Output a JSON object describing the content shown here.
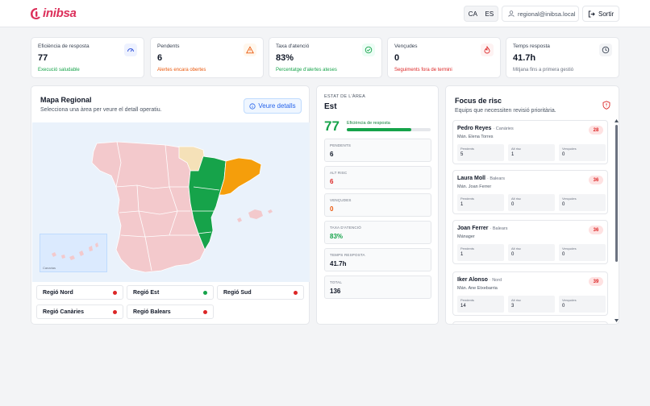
{
  "brand": {
    "name": "inibsa"
  },
  "header": {
    "lang_ca": "CA",
    "lang_es": "ES",
    "user_email": "regional@inibsa.local",
    "logout_label": "Sortir"
  },
  "colors": {
    "brand": "#dc2f5a",
    "accent": "#2563eb",
    "success": "#16a34a",
    "warning": "#ea580c",
    "danger": "#dc2626",
    "map_default": "#f3c9cc",
    "map_selected": "#16a34a",
    "map_orange": "#f59e0b",
    "map_beige": "#f5e1b8"
  },
  "kpis": [
    {
      "label": "Eficiència de resposta",
      "value": "77",
      "sub": "Execució saludable",
      "icon": "gauge-icon",
      "tone": "#16a34a"
    },
    {
      "label": "Pendents",
      "value": "6",
      "sub": "Alertes encara obertes",
      "icon": "warning-icon",
      "tone": "#ea580c"
    },
    {
      "label": "Taxa d'atenció",
      "value": "83%",
      "sub": "Percentatge d'alertes ateses",
      "icon": "check-circle-icon",
      "tone": "#16a34a"
    },
    {
      "label": "Vençudes",
      "value": "0",
      "sub": "Seguiments fora de termini",
      "icon": "flame-icon",
      "tone": "#dc2626"
    },
    {
      "label": "Temps resposta",
      "value": "41.7h",
      "sub": "Mitjana fins a primera gestió",
      "icon": "clock-icon",
      "tone": "#6b7280"
    }
  ],
  "map": {
    "title": "Mapa Regional",
    "subtitle": "Selecciona una àrea per veure el detall operatiu.",
    "details_label": "Veure detalls",
    "canarias_label": "Canarias",
    "regions": [
      {
        "label": "Regió Nord",
        "status": "#dc2626"
      },
      {
        "label": "Regió Est",
        "status": "#16a34a"
      },
      {
        "label": "Regió Sud",
        "status": "#dc2626"
      },
      {
        "label": "Regió Canàries",
        "status": "#dc2626"
      },
      {
        "label": "Regió Balears",
        "status": "#dc2626"
      }
    ]
  },
  "state": {
    "tag": "ESTAT DE L'ÀREA",
    "name": "Est",
    "efficiency": "77",
    "efficiency_label": "Eficiència de resposta",
    "efficiency_fraction": 0.77,
    "stats": [
      {
        "label": "PENDENTS",
        "value": "6",
        "color": "#111827"
      },
      {
        "label": "ALT RISC",
        "value": "6",
        "color": "#dc2626"
      },
      {
        "label": "VENÇUDES",
        "value": "0",
        "color": "#ea580c"
      },
      {
        "label": "TAXA D'ATENCIÓ",
        "value": "83%",
        "color": "#16a34a"
      },
      {
        "label": "TEMPS RESPOSTA",
        "value": "41.7h",
        "color": "#111827"
      },
      {
        "label": "TOTAL",
        "value": "136",
        "color": "#111827"
      }
    ]
  },
  "focus": {
    "title": "Focus de risc",
    "subtitle": "Equips que necessiten revisió prioritària.",
    "people": [
      {
        "name": "Pedro Reyes",
        "region": "· Canàries",
        "manager": "Mán. Elena Torres",
        "score": "28",
        "stats": [
          {
            "label": "Pendents",
            "value": "5"
          },
          {
            "label": "Alt risc",
            "value": "1"
          },
          {
            "label": "Vençudes",
            "value": "0"
          }
        ]
      },
      {
        "name": "Laura Moll",
        "region": "· Balears",
        "manager": "Mán. Joan Ferrer",
        "score": "36",
        "stats": [
          {
            "label": "Pendents",
            "value": "1"
          },
          {
            "label": "Alt risc",
            "value": "0"
          },
          {
            "label": "Vençudes",
            "value": "0"
          }
        ]
      },
      {
        "name": "Joan Ferrer",
        "region": "· Balears",
        "manager": "Mánager",
        "score": "36",
        "stats": [
          {
            "label": "Pendents",
            "value": "1"
          },
          {
            "label": "Alt risc",
            "value": "0"
          },
          {
            "label": "Vençudes",
            "value": "0"
          }
        ]
      },
      {
        "name": "Iker Alonso",
        "region": "· Nord",
        "manager": "Mán. Ane Etxebarria",
        "score": "39",
        "stats": [
          {
            "label": "Pendents",
            "value": "14"
          },
          {
            "label": "Alt risc",
            "value": "3"
          },
          {
            "label": "Vençudes",
            "value": "0"
          }
        ]
      }
    ]
  }
}
